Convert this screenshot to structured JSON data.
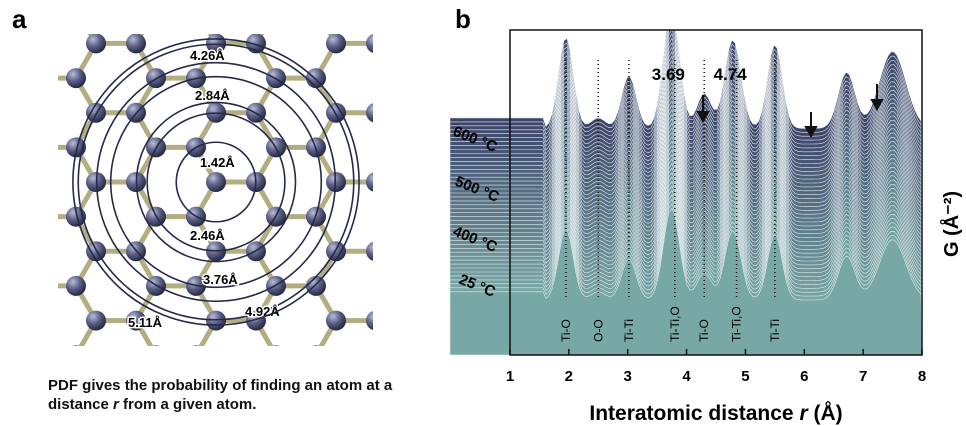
{
  "panel_a": {
    "label": "a",
    "radii": [
      1.42,
      2.46,
      2.84,
      3.76,
      4.26,
      4.92,
      5.11
    ],
    "radius_labels": [
      "1.42Å",
      "2.46Å",
      "2.84Å",
      "3.76Å",
      "4.26Å",
      "4.92Å",
      "5.11Å"
    ],
    "caption_parts": [
      "PDF gives the probability of finding an atom at a distance ",
      "r",
      " from a given atom."
    ]
  },
  "panel_b": {
    "label": "b",
    "xlabel_parts": [
      "Interatomic distance ",
      "r",
      " (Å)"
    ],
    "ylabel": "G (Å⁻²)",
    "xlim": [
      1,
      8
    ],
    "xticks": [
      1,
      2,
      3,
      4,
      5,
      6,
      7,
      8
    ],
    "temperatures": [
      "600 °C",
      "500 °C",
      "400 °C",
      "25 °C"
    ],
    "annotations": [
      3.69,
      4.74
    ],
    "peak_assignments": [
      {
        "label": "Ti-O",
        "r": 1.95
      },
      {
        "label": "O-O",
        "r": 2.5
      },
      {
        "label": "Ti-Ti",
        "r": 3.02
      },
      {
        "label": "Ti-Ti,O",
        "r": 3.8
      },
      {
        "label": "Ti-O",
        "r": 4.3
      },
      {
        "label": "Ti-Ti,O",
        "r": 4.85
      },
      {
        "label": "Ti-Ti",
        "r": 5.5
      }
    ]
  }
}
